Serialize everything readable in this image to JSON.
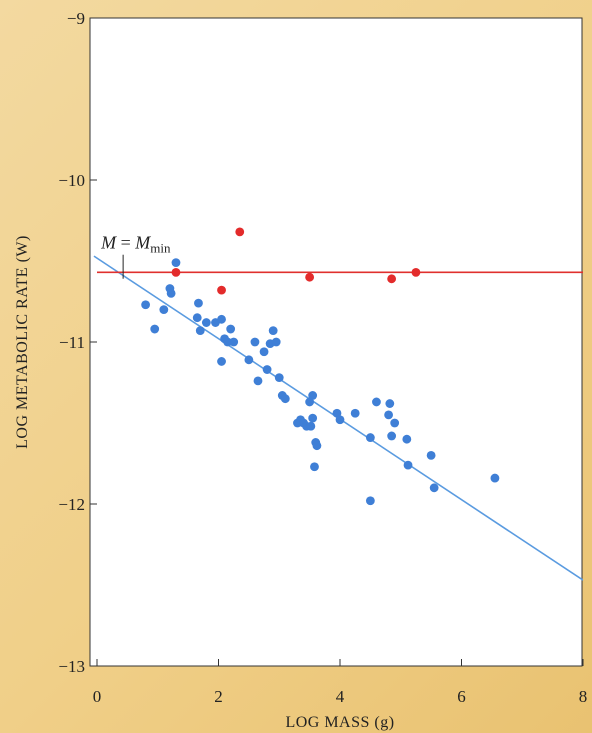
{
  "chart_data": {
    "type": "scatter",
    "xlabel": "LOG MASS (g)",
    "ylabel": "LOG METABOLIC RATE (W)",
    "xlim": [
      0,
      8
    ],
    "ylim": [
      -13,
      -9
    ],
    "xticks": [
      0,
      2,
      4,
      6,
      8
    ],
    "yticks": [
      -9,
      -10,
      -11,
      -12,
      -13
    ],
    "grid": false,
    "annotation": {
      "lhs": "M",
      "eq": " = ",
      "rhs": "M",
      "sub": "min",
      "x": 0.43,
      "y": -10.56
    },
    "series": [
      {
        "color": "#3f7fd6",
        "points": [
          [
            0.8,
            -10.77
          ],
          [
            0.95,
            -10.92
          ],
          [
            1.1,
            -10.8
          ],
          [
            1.2,
            -10.67
          ],
          [
            1.22,
            -10.7
          ],
          [
            1.3,
            -10.51
          ],
          [
            1.65,
            -10.85
          ],
          [
            1.67,
            -10.76
          ],
          [
            1.7,
            -10.93
          ],
          [
            1.8,
            -10.88
          ],
          [
            1.95,
            -10.88
          ],
          [
            2.05,
            -10.86
          ],
          [
            2.05,
            -11.12
          ],
          [
            2.1,
            -10.98
          ],
          [
            2.15,
            -11.0
          ],
          [
            2.2,
            -10.92
          ],
          [
            2.25,
            -11.0
          ],
          [
            2.5,
            -11.11
          ],
          [
            2.6,
            -11.0
          ],
          [
            2.65,
            -11.24
          ],
          [
            2.75,
            -11.06
          ],
          [
            2.8,
            -11.17
          ],
          [
            2.85,
            -11.01
          ],
          [
            2.9,
            -10.93
          ],
          [
            2.95,
            -11.0
          ],
          [
            3.0,
            -11.22
          ],
          [
            3.05,
            -11.33
          ],
          [
            3.1,
            -11.35
          ],
          [
            3.3,
            -11.5
          ],
          [
            3.35,
            -11.48
          ],
          [
            3.4,
            -11.5
          ],
          [
            3.45,
            -11.52
          ],
          [
            3.5,
            -11.37
          ],
          [
            3.52,
            -11.52
          ],
          [
            3.55,
            -11.33
          ],
          [
            3.55,
            -11.47
          ],
          [
            3.58,
            -11.77
          ],
          [
            3.6,
            -11.62
          ],
          [
            3.62,
            -11.64
          ],
          [
            3.95,
            -11.44
          ],
          [
            4.0,
            -11.48
          ],
          [
            4.25,
            -11.44
          ],
          [
            4.5,
            -11.59
          ],
          [
            4.5,
            -11.98
          ],
          [
            4.6,
            -11.37
          ],
          [
            4.8,
            -11.45
          ],
          [
            4.82,
            -11.38
          ],
          [
            4.85,
            -11.58
          ],
          [
            4.9,
            -11.5
          ],
          [
            5.1,
            -11.6
          ],
          [
            5.12,
            -11.76
          ],
          [
            5.5,
            -11.7
          ],
          [
            5.55,
            -11.9
          ],
          [
            6.55,
            -11.84
          ]
        ]
      },
      {
        "color": "#e32b2b",
        "points": [
          [
            1.3,
            -10.57
          ],
          [
            2.05,
            -10.68
          ],
          [
            2.35,
            -10.32
          ],
          [
            3.5,
            -10.6
          ],
          [
            4.85,
            -10.61
          ],
          [
            5.25,
            -10.57
          ]
        ]
      }
    ],
    "lines": [
      {
        "color": "#5a9be0",
        "x": [
          -0.05,
          8
        ],
        "y": [
          -10.47,
          -12.47
        ]
      },
      {
        "color": "#e0302e",
        "x": [
          0,
          8
        ],
        "y": [
          -10.57,
          -10.57
        ]
      }
    ]
  }
}
